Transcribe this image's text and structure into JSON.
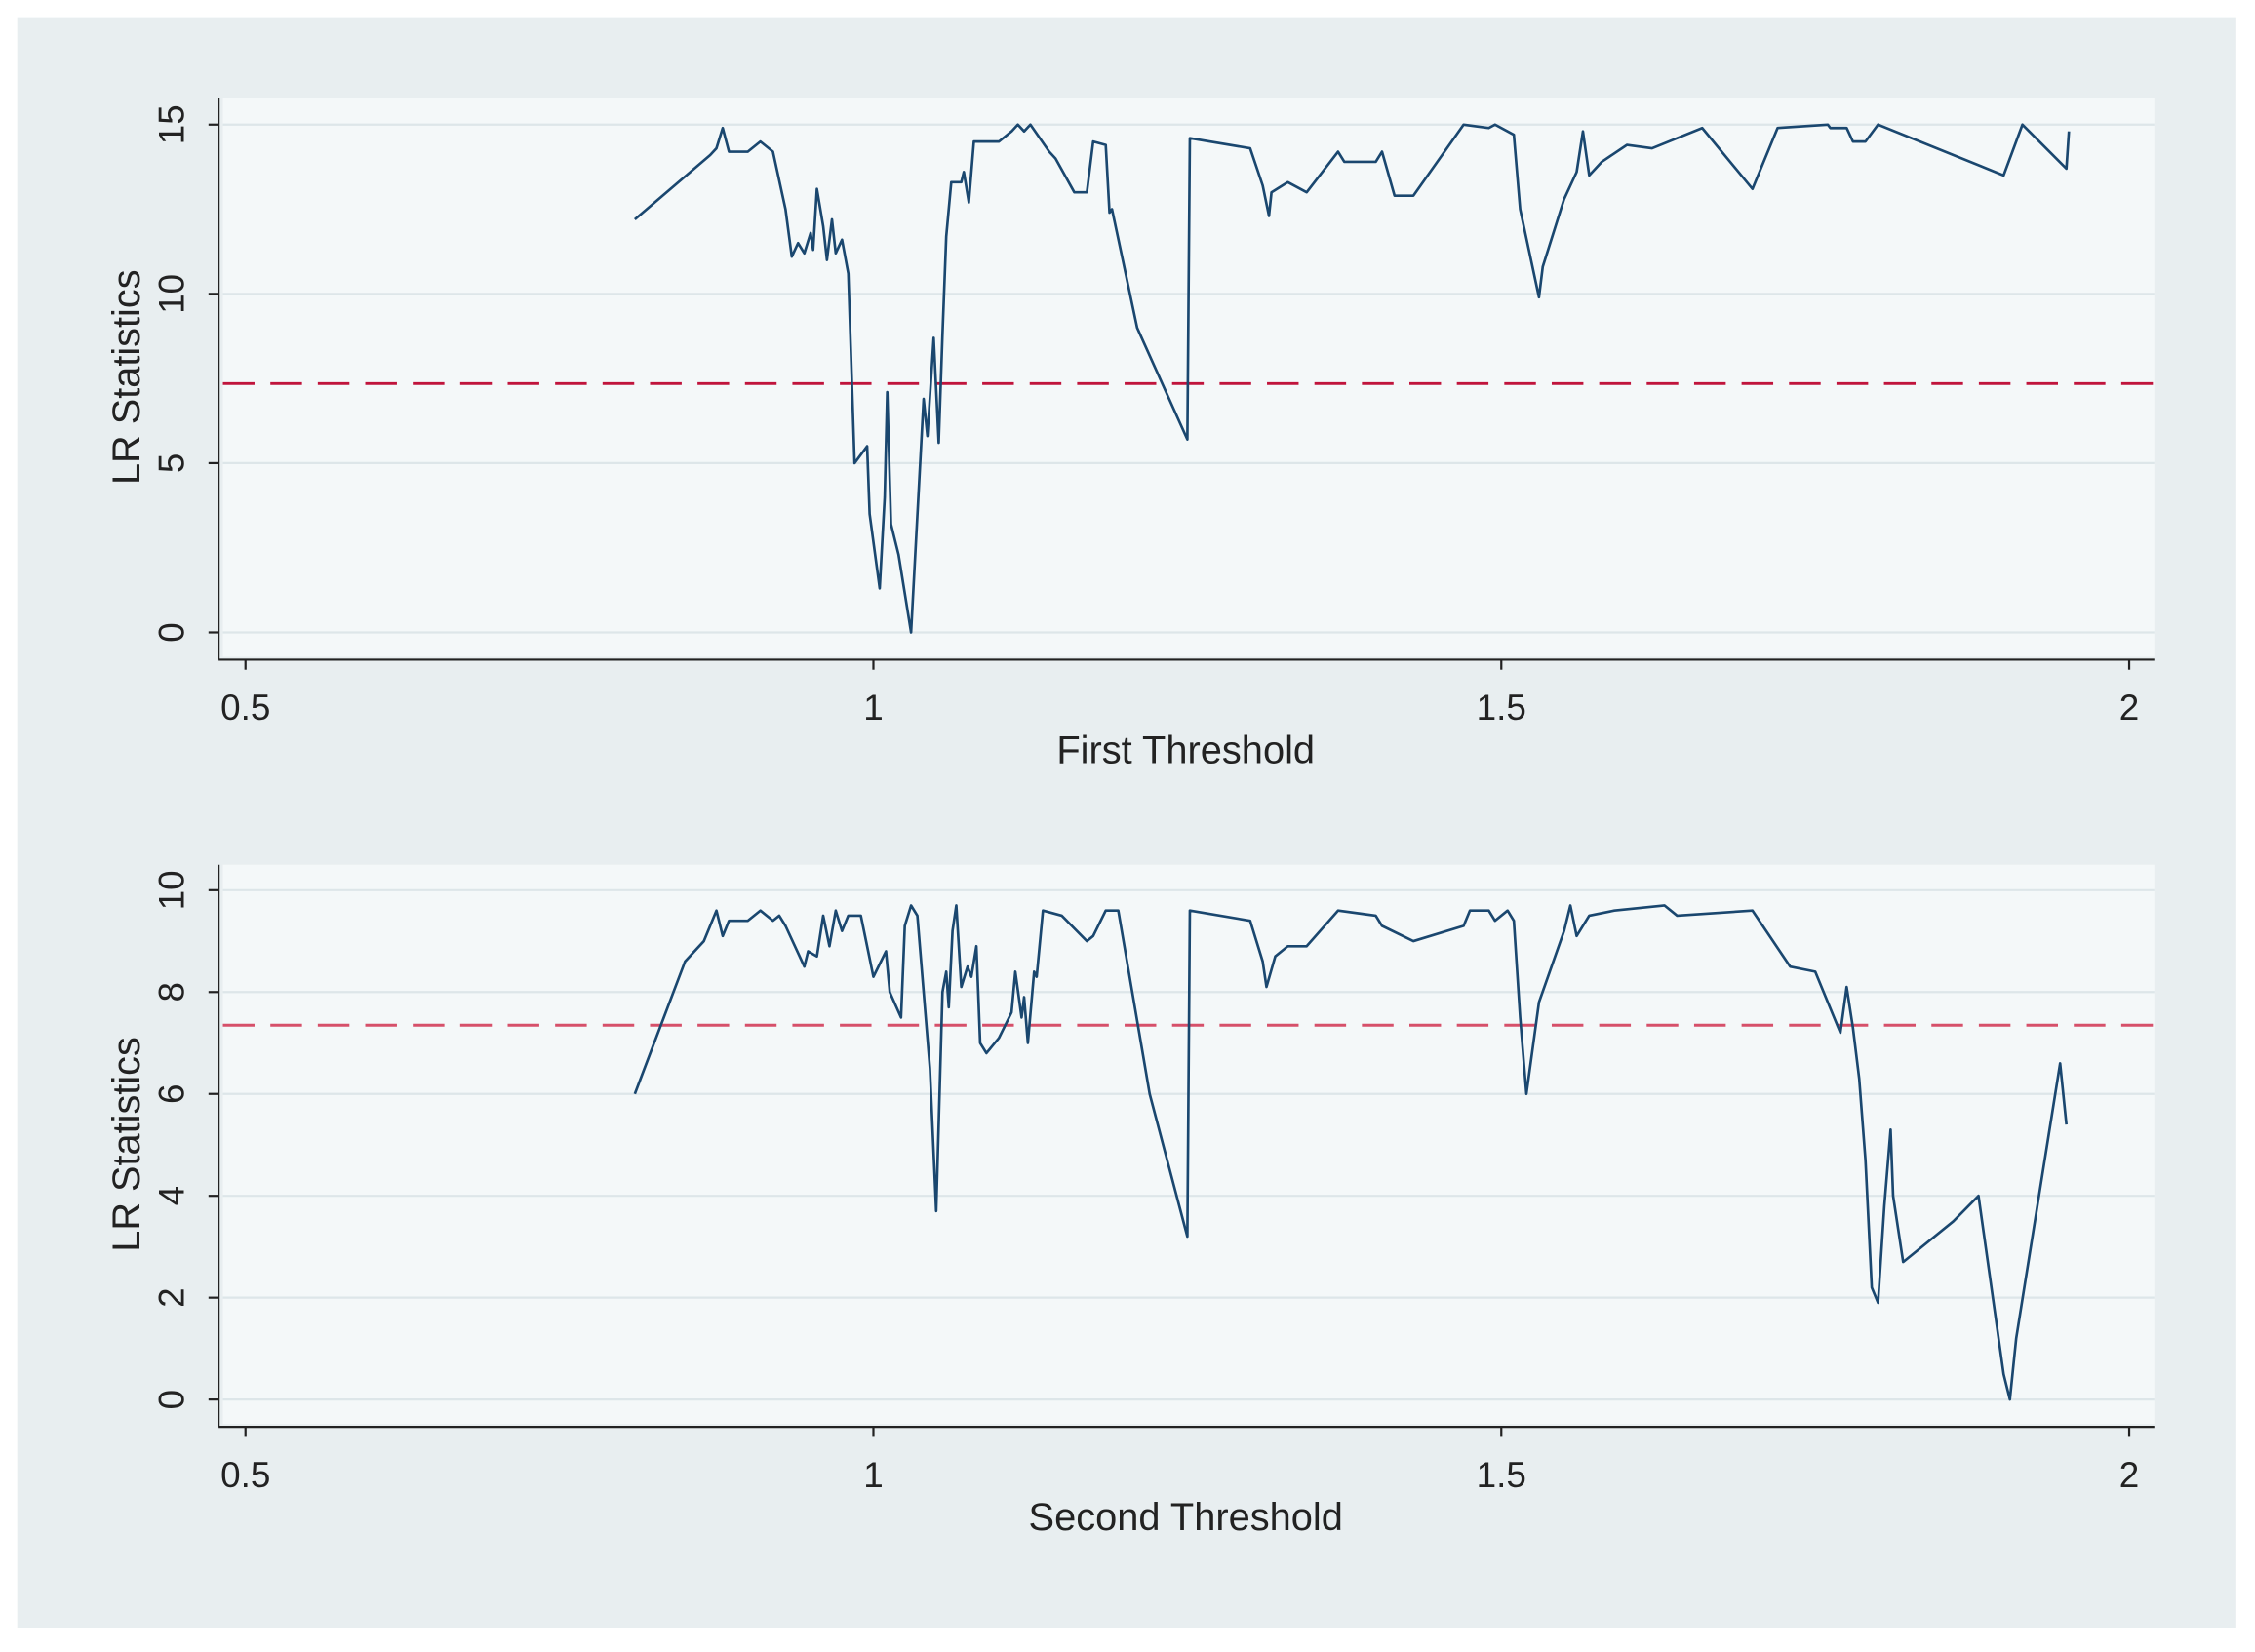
{
  "chart_data": [
    {
      "type": "line",
      "x_label": "First Threshold",
      "y_label": "LR Statistics",
      "xlim": [
        0.482,
        2.02
      ],
      "ylim": [
        -0.72,
        15.8
      ],
      "xticks": [
        0.5,
        1,
        1.5,
        2
      ],
      "yticks": [
        0,
        5,
        10,
        15
      ],
      "grid": true,
      "color": "#1a476f",
      "reference_line": {
        "value": 7.35,
        "color": "#c0143c"
      },
      "x": [
        0.81,
        0.87,
        0.875,
        0.88,
        0.885,
        0.9,
        0.91,
        0.92,
        0.93,
        0.935,
        0.94,
        0.945,
        0.95,
        0.952,
        0.955,
        0.96,
        0.963,
        0.967,
        0.97,
        0.975,
        0.98,
        0.985,
        0.995,
        0.997,
        1.005,
        1.009,
        1.011,
        1.014,
        1.02,
        1.03,
        1.04,
        1.043,
        1.048,
        1.052,
        1.055,
        1.058,
        1.062,
        1.07,
        1.072,
        1.076,
        1.08,
        1.1,
        1.11,
        1.115,
        1.12,
        1.125,
        1.14,
        1.145,
        1.16,
        1.17,
        1.175,
        1.185,
        1.188,
        1.19,
        1.21,
        1.25,
        1.252,
        1.3,
        1.31,
        1.315,
        1.317,
        1.33,
        1.345,
        1.37,
        1.375,
        1.4,
        1.405,
        1.415,
        1.43,
        1.47,
        1.49,
        1.495,
        1.51,
        1.515,
        1.53,
        1.533,
        1.55,
        1.56,
        1.565,
        1.57,
        1.58,
        1.6,
        1.62,
        1.66,
        1.7,
        1.72,
        1.76,
        1.762,
        1.775,
        1.78,
        1.79,
        1.8,
        1.9,
        1.915,
        1.95,
        1.952
      ],
      "values": [
        12.2,
        14.1,
        14.3,
        14.9,
        14.2,
        14.2,
        14.5,
        14.2,
        12.5,
        11.1,
        11.5,
        11.2,
        11.8,
        11.3,
        13.1,
        12.0,
        11.0,
        12.2,
        11.2,
        11.6,
        10.6,
        5.0,
        5.5,
        3.5,
        1.3,
        4.0,
        7.1,
        3.2,
        2.3,
        0,
        6.9,
        5.8,
        8.7,
        5.6,
        8.8,
        11.7,
        13.3,
        13.3,
        13.6,
        12.7,
        14.5,
        14.5,
        14.8,
        15.0,
        14.8,
        15.0,
        14.2,
        14.0,
        13.0,
        13.0,
        14.5,
        14.4,
        12.4,
        12.5,
        9.0,
        5.7,
        14.6,
        14.3,
        13.2,
        12.3,
        13.0,
        13.3,
        13.0,
        14.2,
        13.9,
        13.9,
        14.2,
        12.9,
        12.9,
        15.0,
        14.9,
        15.0,
        14.7,
        12.5,
        9.9,
        10.8,
        12.8,
        13.6,
        14.8,
        13.5,
        13.9,
        14.4,
        14.3,
        14.9,
        13.1,
        14.9,
        15.0,
        14.9,
        14.9,
        14.5,
        14.5,
        15.0,
        13.5,
        15.0,
        13.7,
        14.8
      ]
    },
    {
      "type": "line",
      "x_label": "Second Threshold",
      "y_label": "LR Statistics",
      "xlim": [
        0.482,
        2.02
      ],
      "ylim": [
        -0.48,
        10.5
      ],
      "xticks": [
        0.5,
        1,
        1.5,
        2
      ],
      "yticks": [
        0,
        2,
        4,
        6,
        8,
        10
      ],
      "grid": true,
      "color": "#1a476f",
      "reference_line": {
        "value": 7.35,
        "color": "#d6506a"
      },
      "x": [
        0.81,
        0.85,
        0.865,
        0.875,
        0.88,
        0.885,
        0.9,
        0.91,
        0.92,
        0.925,
        0.93,
        0.945,
        0.948,
        0.955,
        0.96,
        0.965,
        0.97,
        0.975,
        0.98,
        0.99,
        1.0,
        1.01,
        1.013,
        1.022,
        1.025,
        1.03,
        1.035,
        1.045,
        1.05,
        1.055,
        1.058,
        1.06,
        1.063,
        1.066,
        1.07,
        1.075,
        1.078,
        1.082,
        1.085,
        1.09,
        1.1,
        1.11,
        1.113,
        1.118,
        1.12,
        1.123,
        1.128,
        1.13,
        1.135,
        1.15,
        1.17,
        1.175,
        1.185,
        1.195,
        1.22,
        1.25,
        1.252,
        1.3,
        1.31,
        1.313,
        1.32,
        1.33,
        1.345,
        1.37,
        1.4,
        1.405,
        1.43,
        1.47,
        1.475,
        1.49,
        1.495,
        1.505,
        1.51,
        1.515,
        1.52,
        1.53,
        1.55,
        1.555,
        1.56,
        1.57,
        1.59,
        1.63,
        1.64,
        1.7,
        1.73,
        1.75,
        1.77,
        1.775,
        1.78,
        1.785,
        1.79,
        1.795,
        1.8,
        1.805,
        1.81,
        1.812,
        1.82,
        1.86,
        1.88,
        1.9,
        1.905,
        1.91,
        1.945,
        1.95
      ],
      "values": [
        6.0,
        8.6,
        9.0,
        9.6,
        9.1,
        9.4,
        9.4,
        9.6,
        9.4,
        9.5,
        9.3,
        8.5,
        8.8,
        8.7,
        9.5,
        8.9,
        9.6,
        9.2,
        9.5,
        9.5,
        8.3,
        8.8,
        8.0,
        7.5,
        9.3,
        9.7,
        9.5,
        6.5,
        3.7,
        8.0,
        8.4,
        7.7,
        9.2,
        9.7,
        8.1,
        8.5,
        8.3,
        8.9,
        7.0,
        6.8,
        7.1,
        7.6,
        8.4,
        7.5,
        7.9,
        7.0,
        8.4,
        8.3,
        9.6,
        9.5,
        9.0,
        9.1,
        9.6,
        9.6,
        6.0,
        3.2,
        9.6,
        9.4,
        8.6,
        8.1,
        8.7,
        8.9,
        8.9,
        9.6,
        9.5,
        9.3,
        9.0,
        9.3,
        9.6,
        9.6,
        9.4,
        9.6,
        9.4,
        7.5,
        6.0,
        7.8,
        9.2,
        9.7,
        9.1,
        9.5,
        9.6,
        9.7,
        9.5,
        9.6,
        8.5,
        8.4,
        7.2,
        8.1,
        7.3,
        6.3,
        4.7,
        2.2,
        1.9,
        3.8,
        5.3,
        4.0,
        2.7,
        3.5,
        4.0,
        0.5,
        0,
        1.2,
        6.6,
        5.4
      ]
    }
  ]
}
